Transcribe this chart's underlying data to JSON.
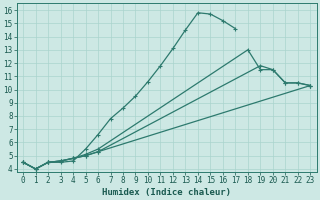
{
  "xlabel": "Humidex (Indice chaleur)",
  "ylabel": "",
  "xlim": [
    -0.5,
    23.5
  ],
  "ylim": [
    3.8,
    16.5
  ],
  "xticks": [
    0,
    1,
    2,
    3,
    4,
    5,
    6,
    7,
    8,
    9,
    10,
    11,
    12,
    13,
    14,
    15,
    16,
    17,
    18,
    19,
    20,
    21,
    22,
    23
  ],
  "yticks": [
    4,
    5,
    6,
    7,
    8,
    9,
    10,
    11,
    12,
    13,
    14,
    15,
    16
  ],
  "bg_color": "#cde8e4",
  "line_color": "#2d7a6e",
  "grid_color": "#aad4ce",
  "lines": [
    {
      "x": [
        0,
        1,
        2,
        3,
        4,
        5,
        6,
        7,
        8,
        9,
        10,
        11,
        12,
        13,
        14,
        15,
        16,
        17
      ],
      "y": [
        4.5,
        4.0,
        4.5,
        4.5,
        4.6,
        5.5,
        6.6,
        7.8,
        8.6,
        9.5,
        10.6,
        11.8,
        13.1,
        14.5,
        15.8,
        15.7,
        15.2,
        14.6
      ]
    },
    {
      "x": [
        0,
        1,
        2,
        3,
        4,
        5,
        6,
        23
      ],
      "y": [
        4.5,
        4.0,
        4.5,
        4.6,
        4.8,
        5.0,
        5.3,
        10.3
      ]
    },
    {
      "x": [
        0,
        1,
        2,
        3,
        4,
        5,
        6,
        19,
        20,
        21,
        22,
        23
      ],
      "y": [
        4.5,
        4.0,
        4.5,
        4.6,
        4.8,
        5.0,
        5.3,
        11.8,
        11.5,
        10.5,
        10.5,
        10.3
      ]
    },
    {
      "x": [
        0,
        1,
        2,
        3,
        4,
        5,
        6,
        18,
        19,
        20,
        21,
        22,
        23
      ],
      "y": [
        4.5,
        4.0,
        4.5,
        4.6,
        4.8,
        5.1,
        5.5,
        13.0,
        11.5,
        11.5,
        10.5,
        10.5,
        10.3
      ]
    }
  ]
}
